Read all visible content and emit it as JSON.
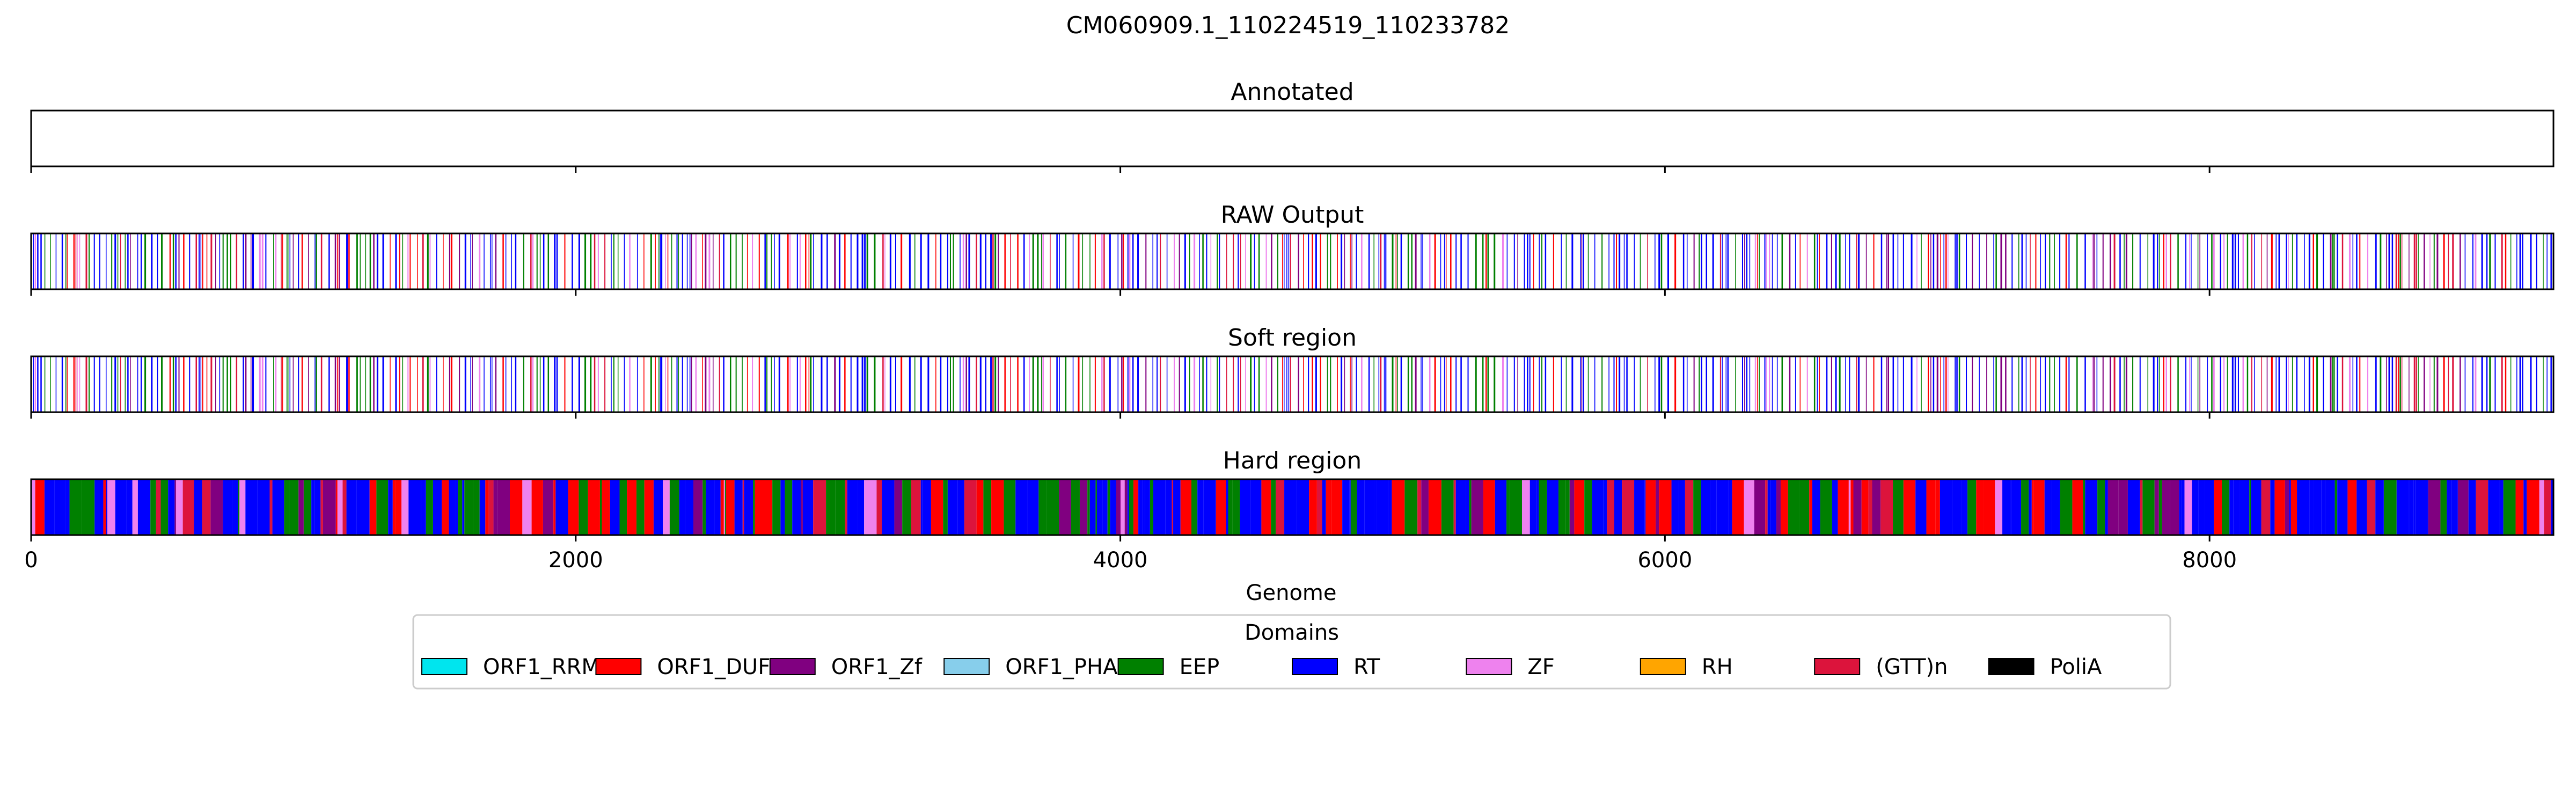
{
  "chart_data": {
    "type": "genome_track",
    "title": "CM060909.1_110224519_110233782",
    "genome_length": 9263,
    "xlabel": "Genome",
    "xlim": [
      0,
      9263
    ],
    "x_ticks": [
      0,
      2000,
      4000,
      6000,
      8000
    ],
    "tracks": [
      {
        "key": "annotated",
        "title": "Annotated",
        "segments": []
      },
      {
        "key": "raw",
        "title": "RAW Output",
        "generator": {
          "style": "sparse",
          "seed": 11,
          "start": 0,
          "end": 9263
        }
      },
      {
        "key": "soft",
        "title": "Soft region",
        "generator": {
          "style": "sparse",
          "seed": 11,
          "start": 0,
          "end": 9263
        }
      },
      {
        "key": "hard",
        "title": "Hard region",
        "generator": {
          "style": "dense",
          "seed": 29,
          "start": 0,
          "end": 9263
        }
      }
    ],
    "legend": {
      "title": "Domains",
      "position": "lower center",
      "items": [
        {
          "label": "ORF1_RRM",
          "color": "#00e5ee"
        },
        {
          "label": "ORF1_DUF",
          "color": "#ff0000"
        },
        {
          "label": "ORF1_Zf",
          "color": "#800080"
        },
        {
          "label": "ORF1_PHA",
          "color": "#87ceeb"
        },
        {
          "label": "EEP",
          "color": "#008000"
        },
        {
          "label": "RT",
          "color": "#0000ff"
        },
        {
          "label": "ZF",
          "color": "#ee82ee"
        },
        {
          "label": "RH",
          "color": "#ffa500"
        },
        {
          "label": "(GTT)n",
          "color": "#dc143c"
        },
        {
          "label": "PoliA",
          "color": "#000000"
        }
      ]
    }
  }
}
